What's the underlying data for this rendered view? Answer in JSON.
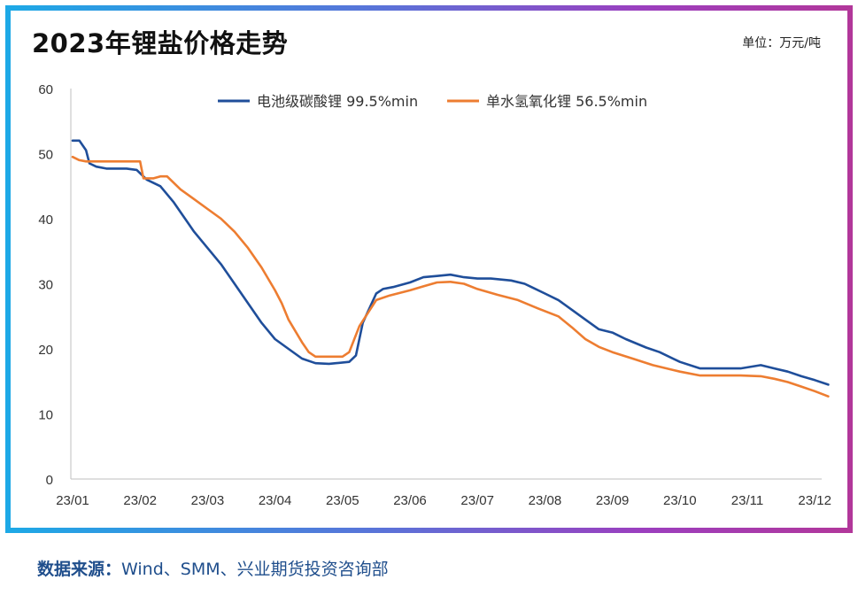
{
  "title": "2023年锂盐价格走势",
  "unit": "单位：万元/吨",
  "source": {
    "label": "数据来源：",
    "text": "Wind、SMM、兴业期货投资咨询部"
  },
  "colors": {
    "series_1": "#1f4e9a",
    "series_2": "#ed7d31",
    "frame_start": "#1da9e6",
    "frame_end": "#b2379a"
  },
  "chart_data": {
    "type": "line",
    "title": "2023年锂盐价格走势",
    "ylabel": "",
    "xlabel": "",
    "ylim": [
      0,
      60
    ],
    "yticks": [
      0,
      10,
      20,
      30,
      40,
      50,
      60
    ],
    "xlim": [
      0,
      11.2
    ],
    "x_tick_labels": [
      "23/01",
      "23/02",
      "23/03",
      "23/04",
      "23/05",
      "23/06",
      "23/07",
      "23/08",
      "23/09",
      "23/10",
      "23/11",
      "23/12"
    ],
    "grid": false,
    "legend": "top-center",
    "series": [
      {
        "name": "电池级碳酸锂 99.5%min",
        "color": "#1f4e9a",
        "x": [
          0,
          0.1,
          0.2,
          0.25,
          0.35,
          0.5,
          0.8,
          0.95,
          1.1,
          1.3,
          1.5,
          1.6,
          1.8,
          2.0,
          2.2,
          2.4,
          2.6,
          2.8,
          3.0,
          3.2,
          3.4,
          3.6,
          3.8,
          3.9,
          4.1,
          4.2,
          4.3,
          4.5,
          4.6,
          4.75,
          5.0,
          5.2,
          5.4,
          5.6,
          5.8,
          6.0,
          6.2,
          6.5,
          6.7,
          6.8,
          7.0,
          7.2,
          7.4,
          7.6,
          7.8,
          8.0,
          8.2,
          8.5,
          8.7,
          9.0,
          9.3,
          9.6,
          9.9,
          10.2,
          10.4,
          10.6,
          10.8,
          11.0,
          11.2
        ],
        "y": [
          52,
          52,
          50.5,
          48.5,
          48,
          47.7,
          47.7,
          47.5,
          46,
          45,
          42.5,
          41,
          38,
          35.5,
          33,
          30,
          27,
          24,
          21.5,
          20,
          18.5,
          17.8,
          17.7,
          17.8,
          18,
          19,
          24,
          28.5,
          29.2,
          29.5,
          30.2,
          31,
          31.2,
          31.4,
          31,
          30.8,
          30.8,
          30.5,
          30,
          29.5,
          28.5,
          27.5,
          26,
          24.5,
          23,
          22.5,
          21.5,
          20.2,
          19.5,
          18,
          17,
          17,
          17,
          17.5,
          17,
          16.5,
          15.8,
          15.2,
          14.5
        ]
      },
      {
        "name": "单水氢氧化锂 56.5%min",
        "color": "#ed7d31",
        "x": [
          0,
          0.1,
          0.2,
          0.4,
          0.6,
          0.8,
          0.95,
          1.0,
          1.05,
          1.2,
          1.3,
          1.4,
          1.6,
          1.8,
          2.0,
          2.2,
          2.4,
          2.6,
          2.8,
          3.0,
          3.1,
          3.2,
          3.4,
          3.5,
          3.6,
          3.8,
          4.0,
          4.1,
          4.25,
          4.5,
          4.7,
          5.0,
          5.2,
          5.4,
          5.6,
          5.8,
          6.0,
          6.3,
          6.6,
          6.9,
          7.2,
          7.4,
          7.6,
          7.8,
          8.0,
          8.3,
          8.6,
          9.0,
          9.3,
          9.6,
          9.9,
          10.2,
          10.4,
          10.6,
          10.8,
          11.0,
          11.2
        ],
        "y": [
          49.5,
          49,
          48.8,
          48.8,
          48.8,
          48.8,
          48.8,
          48.8,
          46.2,
          46.2,
          46.5,
          46.5,
          44.5,
          43,
          41.5,
          40,
          38,
          35.5,
          32.5,
          29,
          27,
          24.5,
          21,
          19.5,
          18.8,
          18.8,
          18.8,
          19.5,
          23.5,
          27.5,
          28.2,
          29,
          29.6,
          30.2,
          30.3,
          30,
          29.2,
          28.3,
          27.5,
          26.2,
          25,
          23.3,
          21.5,
          20.3,
          19.5,
          18.5,
          17.5,
          16.5,
          15.9,
          15.9,
          15.9,
          15.8,
          15.4,
          14.9,
          14.2,
          13.5,
          12.7
        ]
      }
    ]
  }
}
